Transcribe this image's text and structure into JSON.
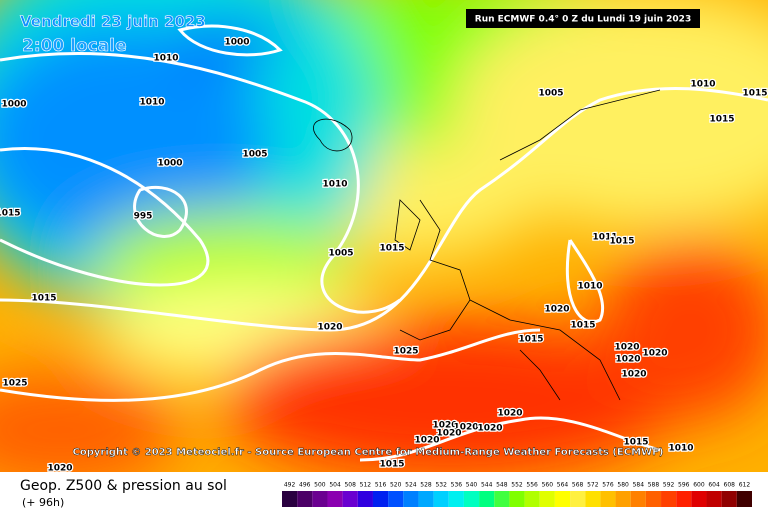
{
  "header": {
    "date": "Vendredi 23 juin 2023",
    "time": "2:00 locale",
    "run": "Run ECMWF 0.4° 0 Z du Lundi 19 juin 2023"
  },
  "copyright": "Copyright © 2023 Meteociel.fr - Source European Centre for Medium-Range Weather Forecasts (ECMWF)",
  "footer": {
    "title": "Geop. Z500 & pression au sol",
    "subtitle": "(+ 96h)"
  },
  "isobar_labels": [
    "1000",
    "1010",
    "1005",
    "1010",
    "1015",
    "1000",
    "1010",
    "1015",
    "1005",
    "1000",
    "1010",
    "995",
    "1015",
    "1005",
    "1015",
    "1011",
    "1015",
    "1010",
    "1015",
    "1020",
    "1015",
    "1020",
    "1025",
    "1015",
    "1020",
    "1020",
    "1020",
    "1020",
    "1025",
    "1020",
    "1020",
    "1020",
    "1020",
    "1020",
    "1020",
    "1015",
    "1010",
    "1015",
    "1020"
  ],
  "legend": {
    "labels": [
      "492",
      "496",
      "500",
      "504",
      "508",
      "512",
      "516",
      "520",
      "524",
      "528",
      "532",
      "536",
      "540",
      "544",
      "548",
      "552",
      "556",
      "560",
      "564",
      "568",
      "572",
      "576",
      "580",
      "584",
      "588",
      "592",
      "596",
      "600",
      "604",
      "608",
      "612"
    ],
    "colors": [
      "#2a0040",
      "#4b0066",
      "#6a0090",
      "#8a00b0",
      "#6a00d0",
      "#3000e0",
      "#0020f0",
      "#0050ff",
      "#0080ff",
      "#00a8ff",
      "#00d0ff",
      "#00f0f0",
      "#00ffc0",
      "#00ff80",
      "#40ff40",
      "#80ff00",
      "#b0ff00",
      "#e0ff00",
      "#ffff00",
      "#fff040",
      "#ffe000",
      "#ffc000",
      "#ffa000",
      "#ff8000",
      "#ff6000",
      "#ff4000",
      "#ff2000",
      "#e00000",
      "#c00000",
      "#900000",
      "#400000"
    ]
  }
}
